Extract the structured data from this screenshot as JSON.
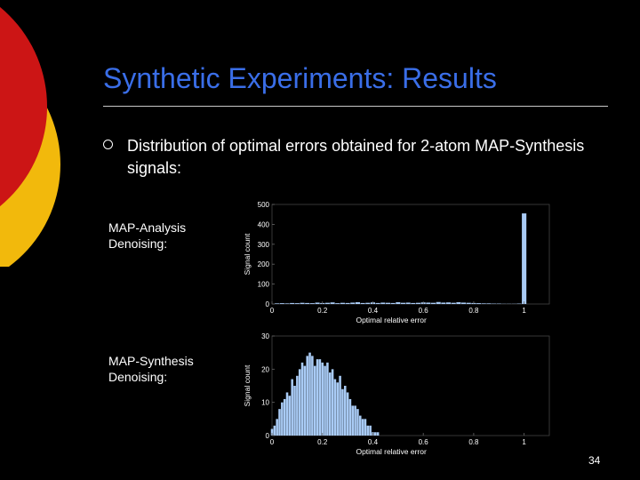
{
  "slide": {
    "title": "Synthetic Experiments: Results",
    "bullet": "Distribution of optimal errors obtained for 2-atom MAP-Synthesis signals:",
    "page_number": "34",
    "colors": {
      "title": "#3a6ee8",
      "bar": "#a9cbf5",
      "deco_red": "#cc1515",
      "deco_yellow": "#f2b90c"
    }
  },
  "labels": {
    "analysis": [
      "MAP-Analysis",
      "Denoising:"
    ],
    "synthesis": [
      "MAP-Synthesis",
      "Denoising:"
    ]
  },
  "chart_data": [
    {
      "type": "bar",
      "title": "",
      "xlabel": "Optimal relative error",
      "ylabel": "Signal count",
      "xlim": [
        0,
        1.1
      ],
      "ylim": [
        0,
        500
      ],
      "xticks": [
        "0",
        "0.2",
        "0.4",
        "0.6",
        "0.8",
        "1"
      ],
      "yticks": [
        "0",
        "100",
        "200",
        "300",
        "400",
        "500"
      ],
      "x": [
        0.0,
        0.02,
        0.04,
        0.06,
        0.08,
        0.1,
        0.12,
        0.14,
        0.16,
        0.18,
        0.2,
        0.22,
        0.24,
        0.26,
        0.28,
        0.3,
        0.32,
        0.34,
        0.36,
        0.38,
        0.4,
        0.42,
        0.44,
        0.46,
        0.48,
        0.5,
        0.52,
        0.54,
        0.56,
        0.58,
        0.6,
        0.62,
        0.64,
        0.66,
        0.68,
        0.7,
        0.72,
        0.74,
        0.76,
        0.78,
        0.8,
        0.82,
        0.84,
        0.86,
        0.88,
        0.9,
        0.92,
        0.94,
        0.96,
        0.98,
        1.0
      ],
      "values": [
        0,
        3,
        4,
        3,
        5,
        4,
        6,
        5,
        4,
        7,
        5,
        6,
        8,
        4,
        6,
        5,
        7,
        9,
        5,
        6,
        8,
        5,
        7,
        6,
        5,
        9,
        6,
        7,
        5,
        6,
        8,
        7,
        6,
        10,
        7,
        8,
        6,
        9,
        7,
        6,
        5,
        4,
        3,
        3,
        2,
        2,
        1,
        1,
        1,
        2,
        455
      ]
    },
    {
      "type": "bar",
      "title": "",
      "xlabel": "Optimal relative error",
      "ylabel": "Signal count",
      "xlim": [
        0,
        1.1
      ],
      "ylim": [
        0,
        30
      ],
      "xticks": [
        "0",
        "0.2",
        "0.4",
        "0.6",
        "0.8",
        "1"
      ],
      "yticks": [
        "0",
        "10",
        "20",
        "30"
      ],
      "x": [
        0.0,
        0.01,
        0.02,
        0.03,
        0.04,
        0.05,
        0.06,
        0.07,
        0.08,
        0.09,
        0.1,
        0.11,
        0.12,
        0.13,
        0.14,
        0.15,
        0.16,
        0.17,
        0.18,
        0.19,
        0.2,
        0.21,
        0.22,
        0.23,
        0.24,
        0.25,
        0.26,
        0.27,
        0.28,
        0.29,
        0.3,
        0.31,
        0.32,
        0.33,
        0.34,
        0.35,
        0.36,
        0.37,
        0.38,
        0.39,
        0.4,
        0.41,
        0.42
      ],
      "values": [
        2,
        3,
        5,
        8,
        10,
        11,
        13,
        12,
        17,
        15,
        18,
        20,
        22,
        21,
        24,
        25,
        24,
        21,
        23,
        23,
        22,
        21,
        22,
        19,
        20,
        17,
        16,
        18,
        14,
        15,
        13,
        11,
        9,
        9,
        8,
        6,
        5,
        5,
        3,
        3,
        1,
        1,
        1
      ]
    }
  ]
}
